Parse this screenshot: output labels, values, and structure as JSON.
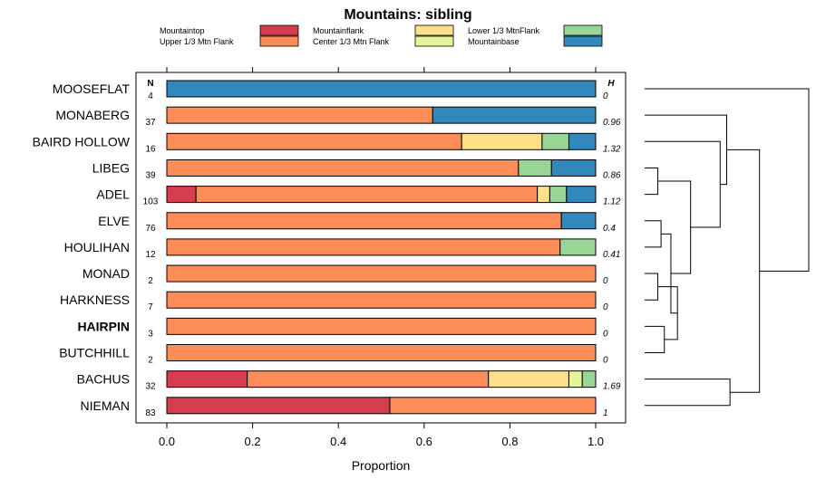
{
  "chart_data": {
    "type": "bar",
    "orientation": "horizontal-stacked",
    "title": "Mountains: sibling",
    "xlabel": "Proportion",
    "ylabel": "",
    "xlim": [
      0,
      1
    ],
    "xticks": [
      0,
      0.2,
      0.4,
      0.6,
      0.8,
      1
    ],
    "xtick_labels": [
      "0.0",
      "0.2",
      "0.4",
      "0.6",
      "0.8",
      "1.0"
    ],
    "n_header": "N",
    "h_header": "H",
    "legend_position": "top",
    "legend": [
      {
        "name": "Mountaintop",
        "color": "#d63e50"
      },
      {
        "name": "Upper 1/3 Mtn Flank",
        "color": "#fc8d59"
      },
      {
        "name": "Mountainflank",
        "color": "#fee08b"
      },
      {
        "name": "Center 1/3 Mtn Flank",
        "color": "#e6f598"
      },
      {
        "name": "Lower 1/3 MtnFlank",
        "color": "#99d594"
      },
      {
        "name": "Mountainbase",
        "color": "#3288bd"
      }
    ],
    "series_order": [
      "Mountaintop",
      "Upper 1/3 Mtn Flank",
      "Mountainflank",
      "Center 1/3 Mtn Flank",
      "Lower 1/3 MtnFlank",
      "Mountainbase"
    ],
    "rows": [
      {
        "label": "MOOSEFLAT",
        "n": "4",
        "h": "0",
        "bold": false,
        "values": [
          0,
          0,
          0,
          0,
          0,
          1
        ]
      },
      {
        "label": "MONABERG",
        "n": "37",
        "h": "0.96",
        "bold": false,
        "values": [
          0,
          0.62,
          0,
          0,
          0,
          0.38
        ]
      },
      {
        "label": "BAIRD HOLLOW",
        "n": "16",
        "h": "1.32",
        "bold": false,
        "values": [
          0,
          0.6875,
          0.1875,
          0,
          0.0625,
          0.0625
        ]
      },
      {
        "label": "LIBEG",
        "n": "39",
        "h": "0.86",
        "bold": false,
        "values": [
          0,
          0.82,
          0,
          0,
          0.077,
          0.103
        ]
      },
      {
        "label": "ADEL",
        "n": "103",
        "h": "1.12",
        "bold": false,
        "values": [
          0.068,
          0.796,
          0.029,
          0,
          0.039,
          0.068
        ]
      },
      {
        "label": "ELVE",
        "n": "76",
        "h": "0.4",
        "bold": false,
        "values": [
          0,
          0.92,
          0,
          0,
          0,
          0.08
        ]
      },
      {
        "label": "HOULIHAN",
        "n": "12",
        "h": "0.41",
        "bold": false,
        "values": [
          0,
          0.917,
          0,
          0,
          0.083,
          0
        ]
      },
      {
        "label": "MONAD",
        "n": "2",
        "h": "0",
        "bold": false,
        "values": [
          0,
          1,
          0,
          0,
          0,
          0
        ]
      },
      {
        "label": "HARKNESS",
        "n": "7",
        "h": "0",
        "bold": false,
        "values": [
          0,
          1,
          0,
          0,
          0,
          0
        ]
      },
      {
        "label": "HAIRPIN",
        "n": "3",
        "h": "0",
        "bold": true,
        "values": [
          0,
          1,
          0,
          0,
          0,
          0
        ]
      },
      {
        "label": "BUTCHHILL",
        "n": "2",
        "h": "0",
        "bold": false,
        "values": [
          0,
          1,
          0,
          0,
          0,
          0
        ]
      },
      {
        "label": "BACHUS",
        "n": "32",
        "h": "1.69",
        "bold": false,
        "values": [
          0.1875,
          0.5625,
          0.1875,
          0.03125,
          0.03125,
          0
        ]
      },
      {
        "label": "NIEMAN",
        "n": "83",
        "h": "1",
        "bold": false,
        "values": [
          0.52,
          0.48,
          0,
          0,
          0,
          0
        ]
      }
    ],
    "dendrogram": {
      "merge_heights": {
        "c1": 0.08,
        "c2": 0.1,
        "c3": 0.08,
        "c4": 0.12,
        "c5": 0.2,
        "c6": 0.16,
        "c7": 0.28,
        "c8": 0.46,
        "c9": 0.5,
        "c10": 0.7,
        "c11": 0.52,
        "c12": 1.0
      }
    }
  }
}
